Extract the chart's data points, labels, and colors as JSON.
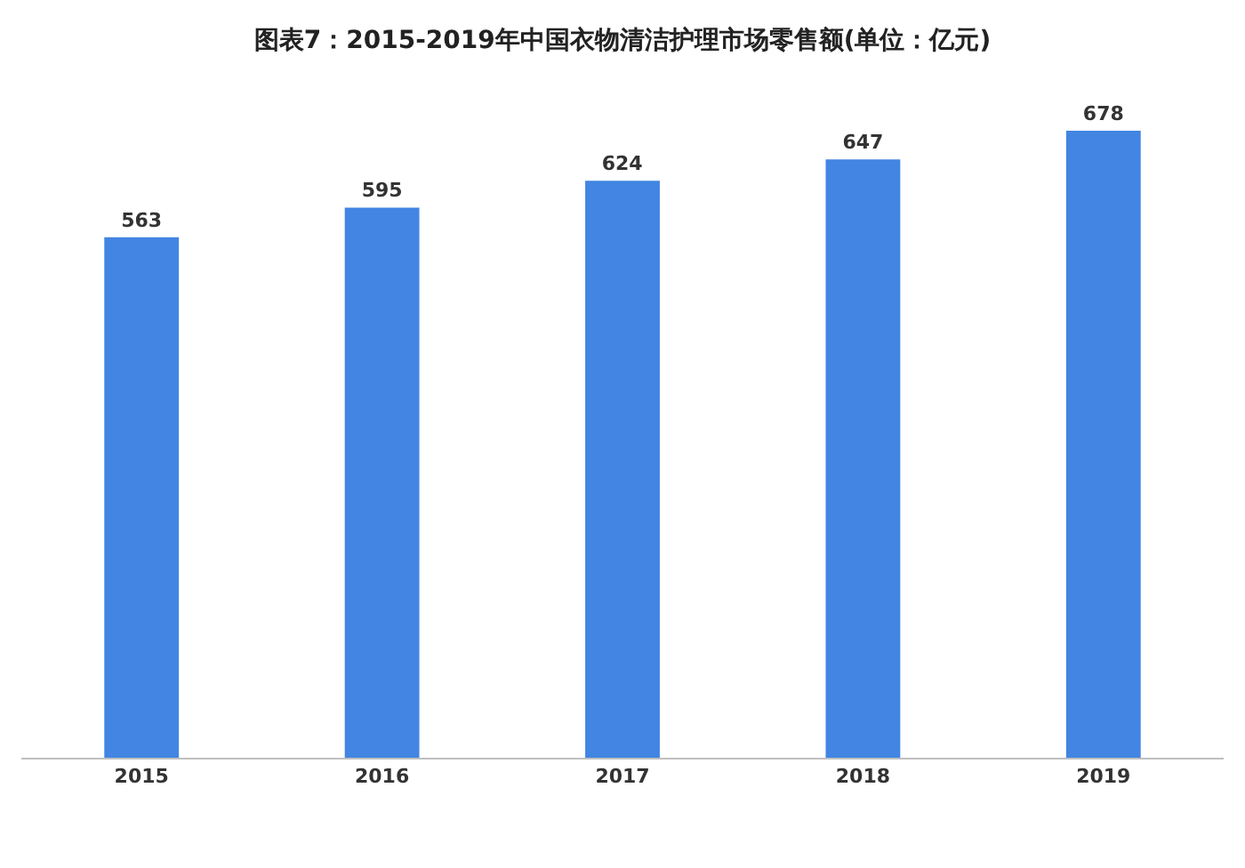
{
  "chart_data": {
    "type": "bar",
    "title": "图表7：2015-2019年中国衣物清洁护理市场零售额(单位：亿元)",
    "categories": [
      "2015",
      "2016",
      "2017",
      "2018",
      "2019"
    ],
    "values": [
      563,
      595,
      624,
      647,
      678
    ],
    "color": "#4285e2",
    "data_labels": true,
    "legend": false,
    "tick_labels": "x"
  }
}
